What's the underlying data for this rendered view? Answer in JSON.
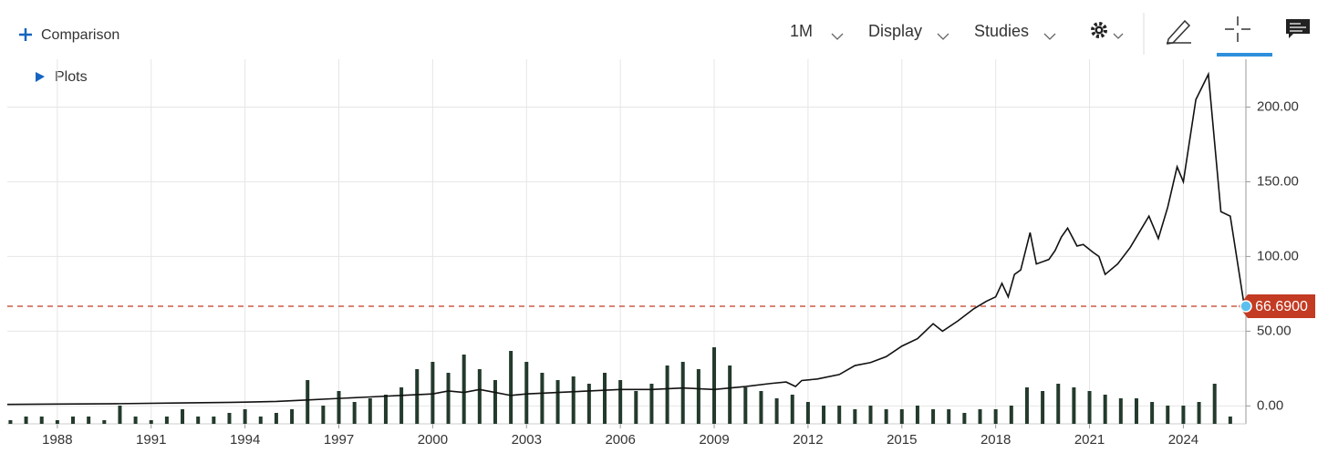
{
  "toolbar": {
    "comparison": "Comparison",
    "plots": "Plots",
    "interval": "1M",
    "display": "Display",
    "studies": "Studies"
  },
  "chart_data": {
    "type": "line",
    "xlim": [
      1986.4,
      2026
    ],
    "ylim": [
      -12,
      232
    ],
    "y2lim": [
      0,
      100
    ],
    "xticks": [
      1988,
      1991,
      1994,
      1997,
      2000,
      2003,
      2006,
      2009,
      2012,
      2015,
      2018,
      2021,
      2024
    ],
    "yticks": [
      {
        "value": 0,
        "label": "0.00"
      },
      {
        "value": 50,
        "label": "50.00"
      },
      {
        "value": 100,
        "label": "100.00"
      },
      {
        "value": 150,
        "label": "150.00"
      },
      {
        "value": 200,
        "label": "200.00"
      }
    ],
    "grid": true,
    "series": [
      {
        "type": "line",
        "color": "#111111",
        "x": [
          1986.4,
          1988,
          1990,
          1992,
          1994,
          1995,
          1996,
          1997,
          1998,
          1999,
          2000,
          2000.5,
          2001,
          2001.5,
          2002,
          2002.5,
          2003,
          2004,
          2005,
          2006,
          2007,
          2008,
          2009,
          2010,
          2010.8,
          2011.3,
          2011.6,
          2011.8,
          2012.3,
          2013,
          2013.5,
          2014,
          2014.5,
          2015,
          2015.5,
          2016,
          2016.3,
          2016.8,
          2017.3,
          2017.7,
          2018,
          2018.2,
          2018.4,
          2018.6,
          2018.8,
          2019.1,
          2019.3,
          2019.7,
          2019.9,
          2020.1,
          2020.3,
          2020.6,
          2020.8,
          2021.1,
          2021.3,
          2021.5,
          2021.9,
          2022.3,
          2022.9,
          2023.2,
          2023.5,
          2023.8,
          2024.0,
          2024.4,
          2024.8,
          2025.2,
          2025.5,
          2025.95
        ],
        "values": [
          1,
          1.2,
          1.5,
          2,
          2.5,
          3,
          4,
          5,
          6,
          7,
          8,
          10,
          9,
          11,
          9,
          7,
          8,
          9,
          10,
          11,
          11,
          12,
          11,
          13,
          15,
          16,
          13,
          17,
          18,
          21,
          27,
          29,
          33,
          40,
          45,
          55,
          50,
          57,
          65,
          70,
          73,
          82,
          73,
          88,
          91,
          116,
          95,
          98,
          104,
          113,
          119,
          107,
          108,
          103,
          100,
          88,
          95,
          106,
          127,
          112,
          133,
          160,
          150,
          205,
          222,
          130,
          127,
          66.69
        ]
      },
      {
        "type": "bar",
        "axis": "y2",
        "color": "#233a2c",
        "x": [
          1986.5,
          1987,
          1987.5,
          1988,
          1988.5,
          1989,
          1989.5,
          1990,
          1990.5,
          1991,
          1991.5,
          1992,
          1992.5,
          1993,
          1993.5,
          1994,
          1994.5,
          1995,
          1995.5,
          1996,
          1996.5,
          1997,
          1997.5,
          1998,
          1998.5,
          1999,
          1999.5,
          2000,
          2000.5,
          2001,
          2001.5,
          2002,
          2002.5,
          2003,
          2003.5,
          2004,
          2004.5,
          2005,
          2005.5,
          2006,
          2006.5,
          2007,
          2007.5,
          2008,
          2008.5,
          2009,
          2009.5,
          2010,
          2010.5,
          2011,
          2011.5,
          2012,
          2012.5,
          2013,
          2013.5,
          2014,
          2014.5,
          2015,
          2015.5,
          2016,
          2016.5,
          2017,
          2017.5,
          2018,
          2018.5,
          2019,
          2019.5,
          2020,
          2020.5,
          2021,
          2021.5,
          2022,
          2022.5,
          2023,
          2023.5,
          2024,
          2024.5,
          2025,
          2025.5
        ],
        "values": [
          1,
          2,
          2,
          1,
          2,
          2,
          1,
          5,
          2,
          1,
          2,
          4,
          2,
          2,
          3,
          4,
          2,
          3,
          4,
          12,
          5,
          9,
          6,
          7,
          8,
          10,
          15,
          17,
          14,
          19,
          15,
          12,
          20,
          17,
          14,
          12,
          13,
          11,
          14,
          12,
          9,
          11,
          16,
          17,
          15,
          21,
          16,
          10,
          9,
          7,
          8,
          6,
          5,
          5,
          4,
          5,
          4,
          4,
          5,
          4,
          4,
          3,
          4,
          4,
          5,
          10,
          9,
          11,
          10,
          9,
          8,
          7,
          7,
          6,
          5,
          5,
          6,
          11,
          2
        ]
      }
    ],
    "reference_line": {
      "value": 66.69,
      "label": "66.6900",
      "color": "#c23b22"
    }
  }
}
